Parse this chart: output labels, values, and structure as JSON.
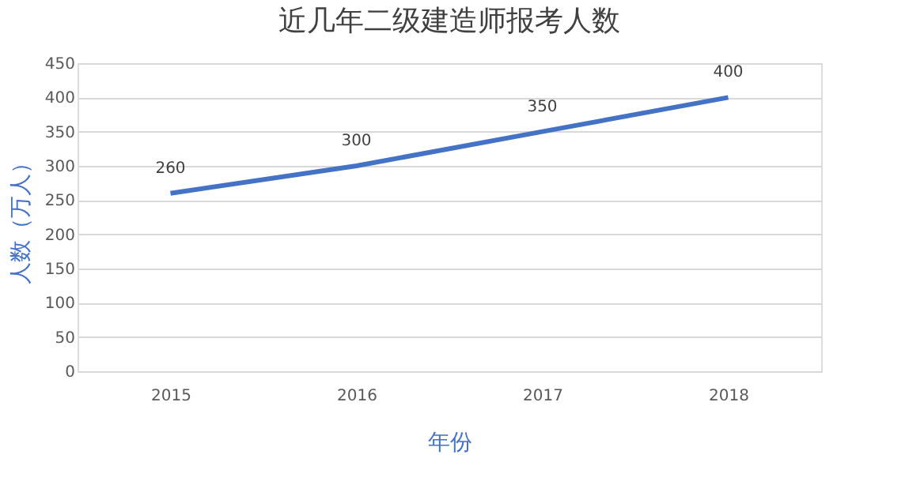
{
  "chart_data": {
    "type": "line",
    "title": "近几年二级建造师报考人数",
    "xlabel": "年份",
    "ylabel": "人数（万人）",
    "categories": [
      "2015",
      "2016",
      "2017",
      "2018"
    ],
    "series": [
      {
        "color": "#4472c4",
        "values": [
          260,
          300,
          350,
          400
        ]
      }
    ],
    "ylim": [
      0,
      450
    ],
    "yticks": [
      0,
      50,
      100,
      150,
      200,
      250,
      300,
      350,
      400,
      450
    ],
    "grid": "y",
    "data_labels": true,
    "marker": "none",
    "line_style": "solid",
    "legend": false
  }
}
